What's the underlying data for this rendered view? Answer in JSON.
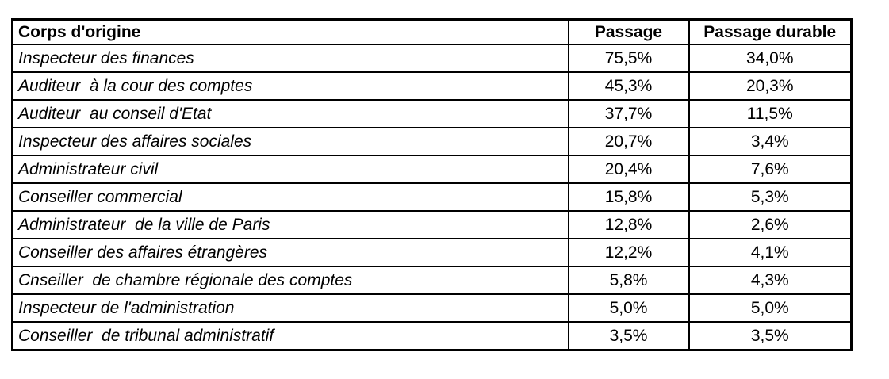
{
  "chart_data": {
    "type": "table",
    "title": "",
    "columns": [
      "Corps d'origine",
      "Passage",
      "Passage durable"
    ],
    "value_format": "percent, comma decimal separator",
    "rows": [
      {
        "corps": "Inspecteur des finances",
        "passage": "75,5%",
        "passage_durable": "34,0%"
      },
      {
        "corps": "Auditeur  à la cour des comptes",
        "passage": "45,3%",
        "passage_durable": "20,3%"
      },
      {
        "corps": "Auditeur  au conseil d'Etat",
        "passage": "37,7%",
        "passage_durable": "11,5%"
      },
      {
        "corps": "Inspecteur des affaires sociales",
        "passage": "20,7%",
        "passage_durable": "3,4%"
      },
      {
        "corps": "Administrateur civil",
        "passage": "20,4%",
        "passage_durable": "7,6%"
      },
      {
        "corps": "Conseiller commercial",
        "passage": "15,8%",
        "passage_durable": "5,3%"
      },
      {
        "corps": "Administrateur  de la ville de Paris",
        "passage": "12,8%",
        "passage_durable": "2,6%"
      },
      {
        "corps": "Conseiller des affaires étrangères",
        "passage": "12,2%",
        "passage_durable": "4,1%"
      },
      {
        "corps": "Cnseiller  de chambre régionale des comptes",
        "passage": "5,8%",
        "passage_durable": "4,3%"
      },
      {
        "corps": "Inspecteur de l'administration",
        "passage": "5,0%",
        "passage_durable": "5,0%"
      },
      {
        "corps": "Conseiller  de tribunal administratif",
        "passage": "3,5%",
        "passage_durable": "3,5%"
      }
    ],
    "colors": {
      "text": "#000000",
      "border": "#000000",
      "background": "#ffffff"
    }
  }
}
